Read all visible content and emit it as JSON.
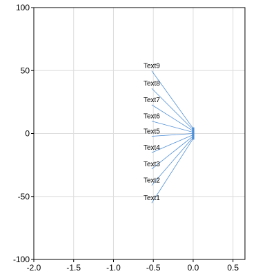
{
  "chart_data": {
    "type": "scatter",
    "title": "",
    "xlabel": "",
    "ylabel": "",
    "xlim": [
      -2.0,
      0.65
    ],
    "ylim": [
      -100,
      100
    ],
    "x_ticks": [
      -2.0,
      -1.5,
      -1.0,
      -0.5,
      0.0,
      0.5
    ],
    "x_tick_labels": [
      "-2.0",
      "-1.5",
      "-1.0",
      "-0.5",
      "0.0",
      "0.5"
    ],
    "y_ticks": [
      -100,
      -50,
      0,
      50,
      100
    ],
    "y_tick_labels": [
      "-100",
      "-50",
      "0",
      "50",
      "100"
    ],
    "grid": true,
    "series": [
      {
        "x": [
          0,
          0,
          0,
          0,
          0,
          0,
          0,
          0,
          0
        ],
        "y": [
          -4,
          -3,
          -2,
          -1,
          0,
          1,
          2,
          3,
          4
        ],
        "labels": [
          "Text1",
          "Text2",
          "Text3",
          "Text4",
          "Text5",
          "Text6",
          "Text7",
          "Text8",
          "Text9"
        ],
        "label_positions": [
          [
            -0.52,
            -53
          ],
          [
            -0.52,
            -39
          ],
          [
            -0.52,
            -26
          ],
          [
            -0.52,
            -13
          ],
          [
            -0.52,
            0
          ],
          [
            -0.52,
            12
          ],
          [
            -0.52,
            25
          ],
          [
            -0.52,
            38
          ],
          [
            -0.52,
            52
          ]
        ],
        "color": "#4f8fd6"
      }
    ]
  }
}
